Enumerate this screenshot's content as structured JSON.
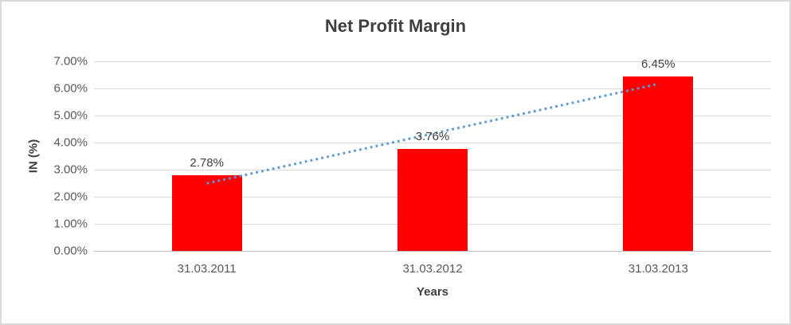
{
  "chart_data": {
    "type": "bar",
    "title": "Net Profit Margin",
    "xlabel": "Years",
    "ylabel": "IN (%)",
    "categories": [
      "31.03.2011",
      "31.03.2012",
      "31.03.2013"
    ],
    "values": [
      2.78,
      3.76,
      6.45
    ],
    "data_labels": [
      "2.78%",
      "3.76%",
      "6.45%"
    ],
    "ylim": [
      0,
      7
    ],
    "ytick_labels": [
      "0.00%",
      "1.00%",
      "2.00%",
      "3.00%",
      "4.00%",
      "5.00%",
      "6.00%",
      "7.00%"
    ],
    "grid": true,
    "legend": false,
    "colors": {
      "bar": "#ff0000",
      "gridline": "#d9d9d9",
      "axis_line": "#bfbfbf",
      "title_text": "#404040",
      "tick_text": "#595959",
      "frame_border": "#d9d9d9"
    },
    "trendline": {
      "type": "linear",
      "style": "dotted",
      "color": "#5b9bd5"
    }
  }
}
